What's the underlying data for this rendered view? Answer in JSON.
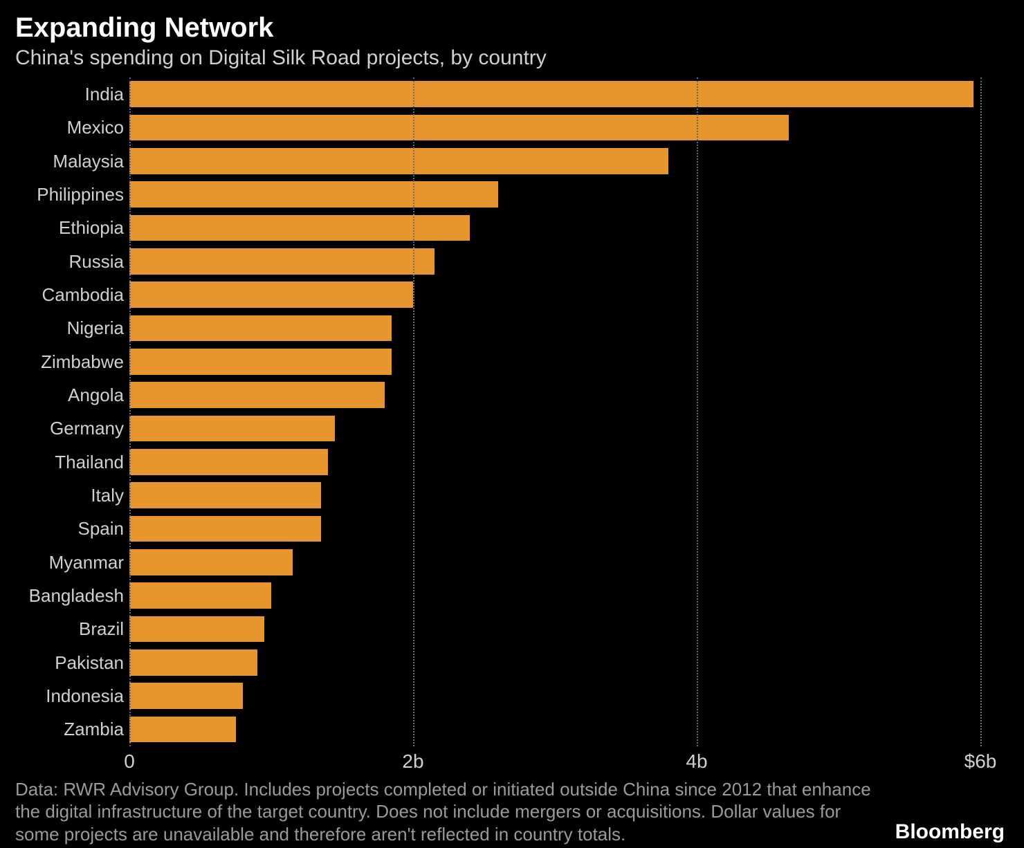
{
  "title": "Expanding Network",
  "subtitle": "China's spending on Digital Silk Road projects, by country",
  "chart": {
    "type": "bar-horizontal",
    "background_color": "#000000",
    "bar_color": "#e6962c",
    "bar_height_ratio": 0.78,
    "grid_color": "#6a6a6a",
    "grid_style": "dotted",
    "text_color": "#d0d0d0",
    "y_fontsize": 26,
    "x_fontsize": 28,
    "xlim": [
      0,
      6.2
    ],
    "x_ticks": [
      {
        "value": 0,
        "label": "0"
      },
      {
        "value": 2,
        "label": "2b"
      },
      {
        "value": 4,
        "label": "4b"
      },
      {
        "value": 6,
        "label": "$6b"
      }
    ],
    "categories": [
      "India",
      "Mexico",
      "Malaysia",
      "Philippines",
      "Ethiopia",
      "Russia",
      "Cambodia",
      "Nigeria",
      "Zimbabwe",
      "Angola",
      "Germany",
      "Thailand",
      "Italy",
      "Spain",
      "Myanmar",
      "Bangladesh",
      "Brazil",
      "Pakistan",
      "Indonesia",
      "Zambia"
    ],
    "values": [
      5.95,
      4.65,
      3.8,
      2.6,
      2.4,
      2.15,
      2.0,
      1.85,
      1.85,
      1.8,
      1.45,
      1.4,
      1.35,
      1.35,
      1.15,
      1.0,
      0.95,
      0.9,
      0.8,
      0.75
    ]
  },
  "footnote": "Data: RWR Advisory Group. Includes projects completed or initiated outside China since 2012 that enhance the digital infrastructure of the target country. Does not include mergers or acquisitions. Dollar values for some projects are unavailable and therefore aren't reflected in country totals.",
  "brand": "Bloomberg",
  "colors": {
    "background": "#000000",
    "title": "#ffffff",
    "subtitle": "#d0d0d0",
    "footnote": "#9a9a9a",
    "brand": "#ffffff"
  },
  "typography": {
    "title_fontsize": 40,
    "title_weight": 700,
    "subtitle_fontsize": 30,
    "footnote_fontsize": 26,
    "brand_fontsize": 30,
    "brand_weight": 700
  }
}
